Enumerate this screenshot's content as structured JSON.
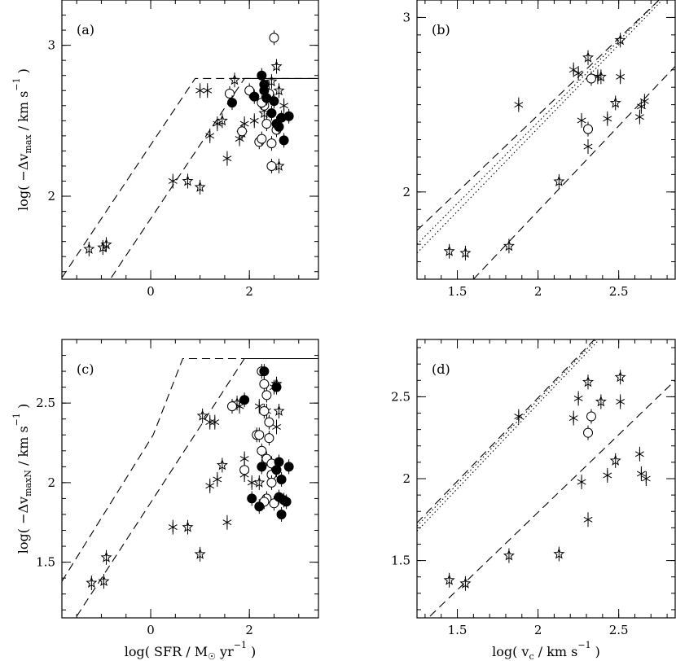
{
  "chart_data": [
    {
      "type": "scatter",
      "panel_label": "(a)",
      "xlabel": "",
      "ylabel": "log( −Δvmax / km s⁻¹ )",
      "ylabel_parts": [
        "log( −Δv",
        "max",
        " / km s",
        "−1",
        " )"
      ],
      "xlim": [
        -1.8,
        3.4
      ],
      "ylim": [
        1.45,
        3.3
      ],
      "xticks": [
        0,
        2
      ],
      "xtick_labels": [
        "0",
        "2"
      ],
      "yticks": [
        2,
        3
      ],
      "ytick_labels": [
        "2",
        "3"
      ],
      "guide_lines": [
        {
          "style": "dashed",
          "points": [
            [
              -1.8,
              1.46
            ],
            [
              0.9,
              2.78
            ],
            [
              3.4,
              2.78
            ]
          ]
        },
        {
          "style": "dashed",
          "points": [
            [
              -0.8,
              1.46
            ],
            [
              1.9,
              2.78
            ]
          ]
        },
        {
          "style": "solid",
          "points": [
            [
              1.9,
              2.78
            ],
            [
              3.4,
              2.78
            ]
          ]
        }
      ],
      "series": [
        {
          "name": "stars",
          "marker": "open-star",
          "points": [
            [
              -1.25,
              1.65
            ],
            [
              -0.97,
              1.66
            ],
            [
              -0.9,
              1.68
            ],
            [
              0.75,
              2.1
            ],
            [
              1.0,
              2.06
            ],
            [
              1.45,
              2.5
            ],
            [
              1.7,
              2.77
            ],
            [
              1.85,
              2.42
            ],
            [
              2.45,
              2.76
            ],
            [
              2.55,
              2.86
            ],
            [
              2.6,
              2.7
            ],
            [
              2.6,
              2.2
            ],
            [
              2.3,
              2.55
            ]
          ]
        },
        {
          "name": "asterisks",
          "marker": "asterisk",
          "points": [
            [
              0.45,
              2.1
            ],
            [
              1.0,
              2.7
            ],
            [
              1.15,
              2.7
            ],
            [
              1.2,
              2.4
            ],
            [
              1.35,
              2.48
            ],
            [
              1.55,
              2.25
            ],
            [
              1.8,
              2.38
            ],
            [
              1.9,
              2.48
            ],
            [
              2.1,
              2.5
            ],
            [
              2.6,
              2.48
            ],
            [
              2.7,
              2.6
            ]
          ]
        },
        {
          "name": "open circles",
          "marker": "open-circle",
          "points": [
            [
              1.6,
              2.68
            ],
            [
              1.85,
              2.43
            ],
            [
              2.0,
              2.7
            ],
            [
              2.2,
              2.36
            ],
            [
              2.25,
              2.38
            ],
            [
              2.3,
              2.6
            ],
            [
              2.35,
              2.48
            ],
            [
              2.4,
              2.68
            ],
            [
              2.45,
              2.35
            ],
            [
              2.45,
              2.2
            ],
            [
              2.5,
              3.05
            ],
            [
              2.55,
              2.44
            ],
            [
              2.25,
              2.62
            ]
          ]
        },
        {
          "name": "filled circles",
          "marker": "filled-circle",
          "points": [
            [
              1.65,
              2.62
            ],
            [
              2.1,
              2.66
            ],
            [
              2.25,
              2.8
            ],
            [
              2.3,
              2.74
            ],
            [
              2.35,
              2.65
            ],
            [
              2.45,
              2.55
            ],
            [
              2.5,
              2.63
            ],
            [
              2.55,
              2.48
            ],
            [
              2.6,
              2.46
            ],
            [
              2.65,
              2.52
            ],
            [
              2.7,
              2.37
            ],
            [
              2.8,
              2.53
            ],
            [
              2.3,
              2.7
            ]
          ]
        }
      ]
    },
    {
      "type": "scatter",
      "panel_label": "(b)",
      "xlabel": "",
      "ylabel": "",
      "xlim": [
        1.25,
        2.85
      ],
      "ylim": [
        1.5,
        3.1
      ],
      "xticks": [
        1.5,
        2,
        2.5
      ],
      "xtick_labels": [
        "1.5",
        "2",
        "2.5"
      ],
      "yticks": [
        2,
        3
      ],
      "ytick_labels": [
        "2",
        "3"
      ],
      "guide_lines": [
        {
          "style": "dashed",
          "points": [
            [
              1.25,
              1.78
            ],
            [
              2.75,
              3.1
            ]
          ]
        },
        {
          "style": "dotted",
          "points": [
            [
              1.25,
              1.65
            ],
            [
              2.77,
              3.1
            ]
          ]
        },
        {
          "style": "dotted",
          "points": [
            [
              1.25,
              1.7
            ],
            [
              2.75,
              3.1
            ]
          ]
        },
        {
          "style": "dashed",
          "points": [
            [
              1.6,
              1.5
            ],
            [
              2.85,
              2.72
            ]
          ]
        }
      ],
      "series": [
        {
          "name": "stars",
          "marker": "open-star",
          "points": [
            [
              1.45,
              1.66
            ],
            [
              1.55,
              1.65
            ],
            [
              1.82,
              1.69
            ],
            [
              2.13,
              2.06
            ],
            [
              2.31,
              2.77
            ],
            [
              2.39,
              2.66
            ],
            [
              2.48,
              2.51
            ],
            [
              2.51,
              2.87
            ]
          ]
        },
        {
          "name": "asterisks",
          "marker": "asterisk",
          "points": [
            [
              1.88,
              2.5
            ],
            [
              2.22,
              2.7
            ],
            [
              2.27,
              2.41
            ],
            [
              2.31,
              2.26
            ],
            [
              2.37,
              2.66
            ],
            [
              2.43,
              2.42
            ],
            [
              2.51,
              2.66
            ],
            [
              2.63,
              2.43
            ],
            [
              2.64,
              2.49
            ],
            [
              2.66,
              2.52
            ],
            [
              2.25,
              2.68
            ]
          ]
        },
        {
          "name": "open circles",
          "marker": "open-circle",
          "points": [
            [
              2.31,
              2.36
            ],
            [
              2.33,
              2.65
            ]
          ]
        }
      ]
    },
    {
      "type": "scatter",
      "panel_label": "(c)",
      "xlabel": "log( SFR / M☉ yr⁻¹ )",
      "xlabel_parts": [
        "log( SFR / M",
        "☉",
        " yr",
        "−1",
        " )"
      ],
      "ylabel": "log( −ΔvmaxN / km s⁻¹ )",
      "ylabel_parts": [
        "log( −Δv",
        "maxN",
        " / km s",
        "−1",
        " )"
      ],
      "xlim": [
        -1.8,
        3.4
      ],
      "ylim": [
        1.15,
        2.9
      ],
      "xticks": [
        0,
        2
      ],
      "xtick_labels": [
        "0",
        "2"
      ],
      "yticks": [
        1.5,
        2,
        2.5
      ],
      "ytick_labels": [
        "1.5",
        "2",
        "2.5"
      ],
      "guide_lines": [
        {
          "style": "dashed",
          "points": [
            [
              -1.8,
              1.38
            ],
            [
              0.05,
              2.3
            ],
            [
              0.65,
              2.78
            ],
            [
              1.9,
              2.78
            ]
          ]
        },
        {
          "style": "dashed",
          "points": [
            [
              -1.5,
              1.16
            ],
            [
              1.9,
              2.78
            ]
          ]
        },
        {
          "style": "solid",
          "points": [
            [
              1.9,
              2.78
            ],
            [
              3.4,
              2.78
            ]
          ]
        }
      ],
      "series": [
        {
          "name": "stars",
          "marker": "open-star",
          "points": [
            [
              -1.2,
              1.37
            ],
            [
              -0.95,
              1.38
            ],
            [
              -0.9,
              1.53
            ],
            [
              0.75,
              1.72
            ],
            [
              1.0,
              1.55
            ],
            [
              1.05,
              2.42
            ],
            [
              1.45,
              2.11
            ],
            [
              1.75,
              2.5
            ],
            [
              2.55,
              2.62
            ],
            [
              2.6,
              2.45
            ],
            [
              2.2,
              2.0
            ]
          ]
        },
        {
          "name": "asterisks",
          "marker": "asterisk",
          "points": [
            [
              0.45,
              1.72
            ],
            [
              1.2,
              2.38
            ],
            [
              1.3,
              2.38
            ],
            [
              1.2,
              1.98
            ],
            [
              1.35,
              2.02
            ],
            [
              1.55,
              1.75
            ],
            [
              1.8,
              2.48
            ],
            [
              1.9,
              2.05
            ],
            [
              1.9,
              2.15
            ],
            [
              2.05,
              2.0
            ],
            [
              2.2,
              2.48
            ],
            [
              2.35,
              2.45
            ],
            [
              2.5,
              2.6
            ],
            [
              2.55,
              2.35
            ]
          ]
        },
        {
          "name": "open circles",
          "marker": "open-circle",
          "points": [
            [
              1.65,
              2.48
            ],
            [
              1.9,
              2.08
            ],
            [
              2.15,
              2.3
            ],
            [
              2.25,
              2.7
            ],
            [
              2.3,
              2.62
            ],
            [
              2.35,
              2.55
            ],
            [
              2.3,
              2.45
            ],
            [
              2.4,
              2.38
            ],
            [
              2.25,
              2.2
            ],
            [
              2.35,
              2.15
            ],
            [
              2.45,
              2.05
            ],
            [
              2.35,
              1.9
            ],
            [
              2.5,
              1.87
            ],
            [
              2.3,
              1.88
            ],
            [
              2.45,
              2.0
            ],
            [
              2.2,
              2.3
            ],
            [
              2.4,
              2.28
            ],
            [
              2.45,
              2.12
            ]
          ]
        },
        {
          "name": "filled circles",
          "marker": "filled-circle",
          "points": [
            [
              1.9,
              2.52
            ],
            [
              2.05,
              1.9
            ],
            [
              2.2,
              1.85
            ],
            [
              2.3,
              2.7
            ],
            [
              2.55,
              2.6
            ],
            [
              2.6,
              2.13
            ],
            [
              2.55,
              2.08
            ],
            [
              2.6,
              1.91
            ],
            [
              2.65,
              1.8
            ],
            [
              2.7,
              1.89
            ],
            [
              2.75,
              1.88
            ],
            [
              2.8,
              2.1
            ],
            [
              2.25,
              2.1
            ],
            [
              2.65,
              2.02
            ]
          ]
        }
      ]
    },
    {
      "type": "scatter",
      "panel_label": "(d)",
      "xlabel": "log( vc / km s⁻¹ )",
      "xlabel_parts": [
        "log( v",
        "c",
        " / km s",
        "−1",
        " )"
      ],
      "ylabel": "",
      "xlim": [
        1.25,
        2.85
      ],
      "ylim": [
        1.15,
        2.85
      ],
      "xticks": [
        1.5,
        2,
        2.5
      ],
      "xtick_labels": [
        "1.5",
        "2",
        "2.5"
      ],
      "yticks": [
        1.5,
        2,
        2.5
      ],
      "ytick_labels": [
        "1.5",
        "2",
        "2.5"
      ],
      "guide_lines": [
        {
          "style": "dashed",
          "points": [
            [
              1.25,
              1.73
            ],
            [
              2.35,
              2.85
            ]
          ]
        },
        {
          "style": "dotted",
          "points": [
            [
              1.25,
              1.68
            ],
            [
              2.38,
              2.85
            ]
          ]
        },
        {
          "style": "dotted",
          "points": [
            [
              1.25,
              1.71
            ],
            [
              2.36,
              2.85
            ]
          ]
        },
        {
          "style": "dashed",
          "points": [
            [
              1.33,
              1.16
            ],
            [
              2.85,
              2.6
            ]
          ]
        }
      ],
      "series": [
        {
          "name": "stars",
          "marker": "open-star",
          "points": [
            [
              1.45,
              1.38
            ],
            [
              1.55,
              1.36
            ],
            [
              1.82,
              1.53
            ],
            [
              2.13,
              1.54
            ],
            [
              2.31,
              2.59
            ],
            [
              2.39,
              2.47
            ],
            [
              2.48,
              2.11
            ],
            [
              2.51,
              2.62
            ]
          ]
        },
        {
          "name": "asterisks",
          "marker": "asterisk",
          "points": [
            [
              1.88,
              2.38
            ],
            [
              2.22,
              2.37
            ],
            [
              2.25,
              2.49
            ],
            [
              2.27,
              1.98
            ],
            [
              2.31,
              1.75
            ],
            [
              2.43,
              2.02
            ],
            [
              2.51,
              2.47
            ],
            [
              2.63,
              2.15
            ],
            [
              2.64,
              2.03
            ],
            [
              2.67,
              2.0
            ]
          ]
        },
        {
          "name": "open circles",
          "marker": "open-circle",
          "points": [
            [
              2.31,
              2.28
            ],
            [
              2.33,
              2.38
            ]
          ]
        }
      ]
    }
  ]
}
